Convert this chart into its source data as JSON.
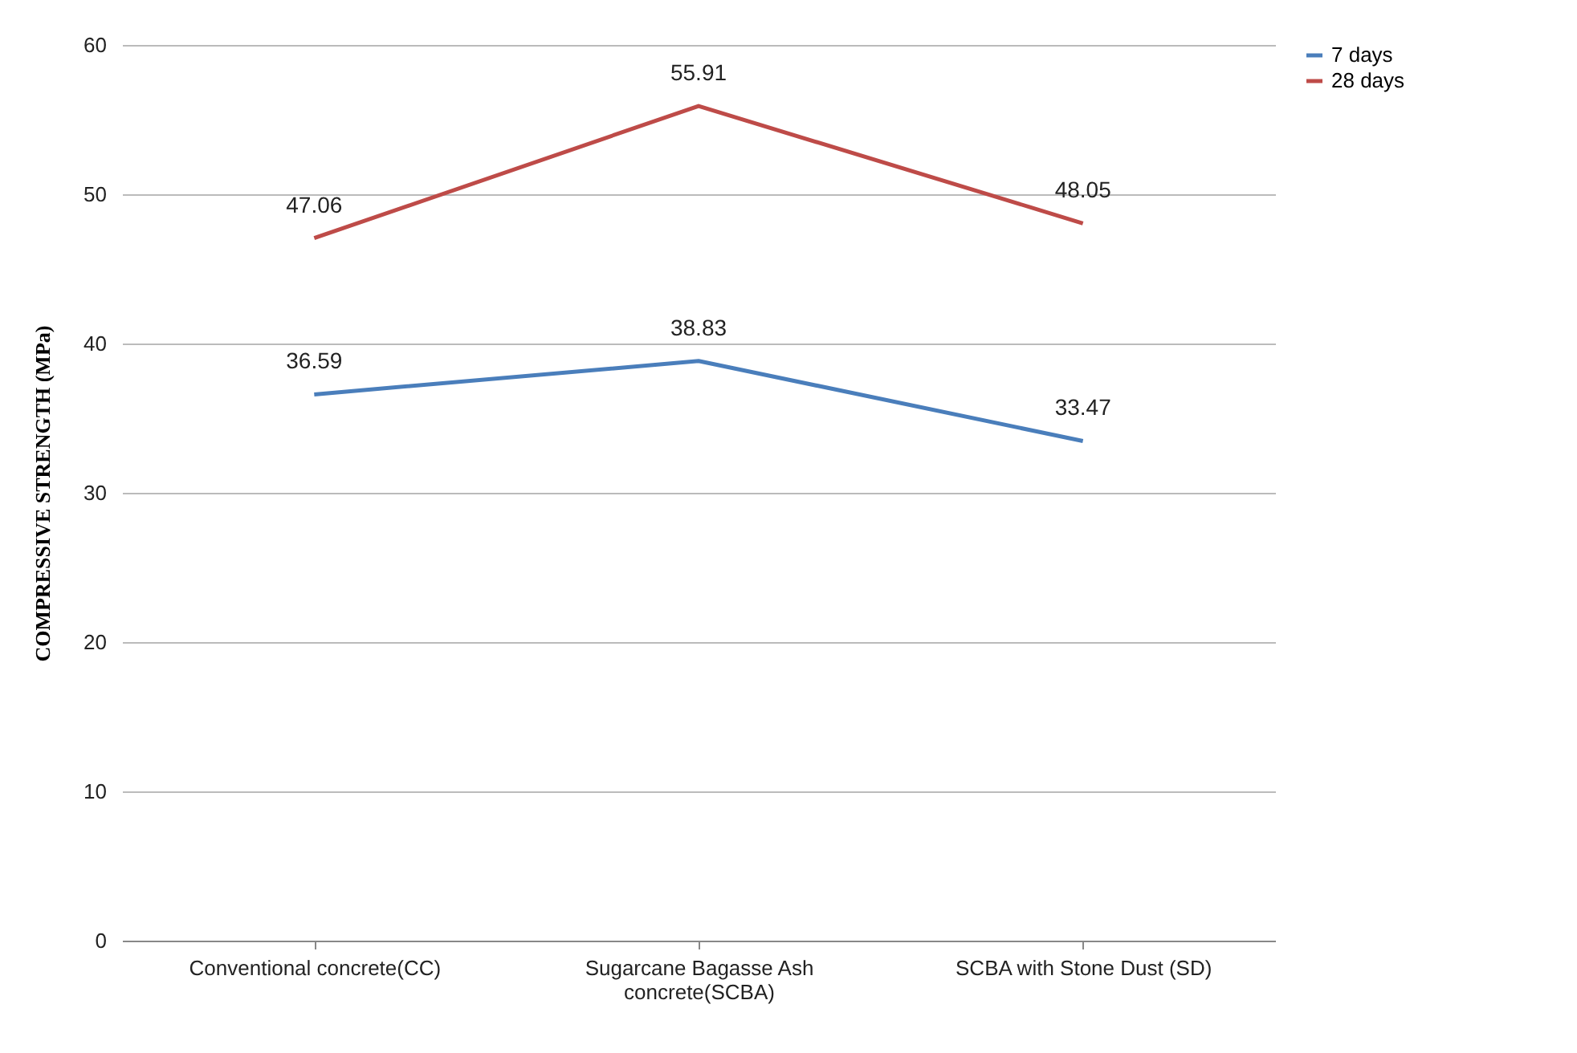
{
  "chart_data": {
    "type": "line",
    "ylabel": "COMPRESSIVE STRENGTH (MPa)",
    "categories": [
      "Conventional concrete(CC)",
      "Sugarcane Bagasse Ash concrete(SCBA)",
      "SCBA with Stone Dust (SD)"
    ],
    "series": [
      {
        "name": "7 days",
        "color": "#4a7ebb",
        "values": [
          36.59,
          38.83,
          33.47
        ]
      },
      {
        "name": "28 days",
        "color": "#be4b48",
        "values": [
          47.06,
          55.91,
          48.05
        ]
      }
    ],
    "ylim": [
      0,
      60
    ],
    "yticks": [
      0,
      10,
      20,
      30,
      40,
      50,
      60
    ],
    "grid": "y",
    "legend": "right",
    "data_labels": true,
    "marker": "none",
    "line_style": "solid"
  }
}
